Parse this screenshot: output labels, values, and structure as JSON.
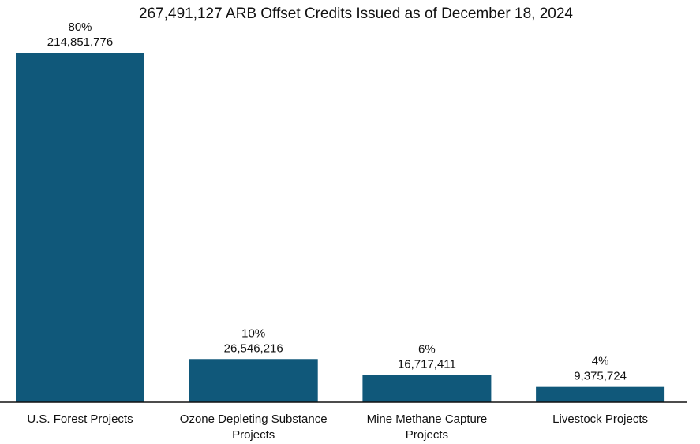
{
  "chart_data": {
    "type": "bar",
    "title": "267,491,127 ARB Offset Credits Issued as of December 18, 2024",
    "xlabel": "",
    "ylabel": "",
    "categories": [
      [
        "U.S. Forest Projects"
      ],
      [
        "Ozone Depleting Substance",
        "Projects"
      ],
      [
        "Mine Methane Capture",
        "Projects"
      ],
      [
        "Livestock Projects"
      ]
    ],
    "values": [
      214851776,
      26546216,
      16717411,
      9375724
    ],
    "value_labels": [
      "214,851,776",
      "26,546,216",
      "16,717,411",
      "9,375,724"
    ],
    "percent_labels": [
      "80%",
      "10%",
      "6%",
      "4%"
    ],
    "ylim": [
      0,
      214851776
    ],
    "grid": false,
    "legend": "none",
    "bar_color": "#10587a",
    "axis_color": "#111111"
  }
}
